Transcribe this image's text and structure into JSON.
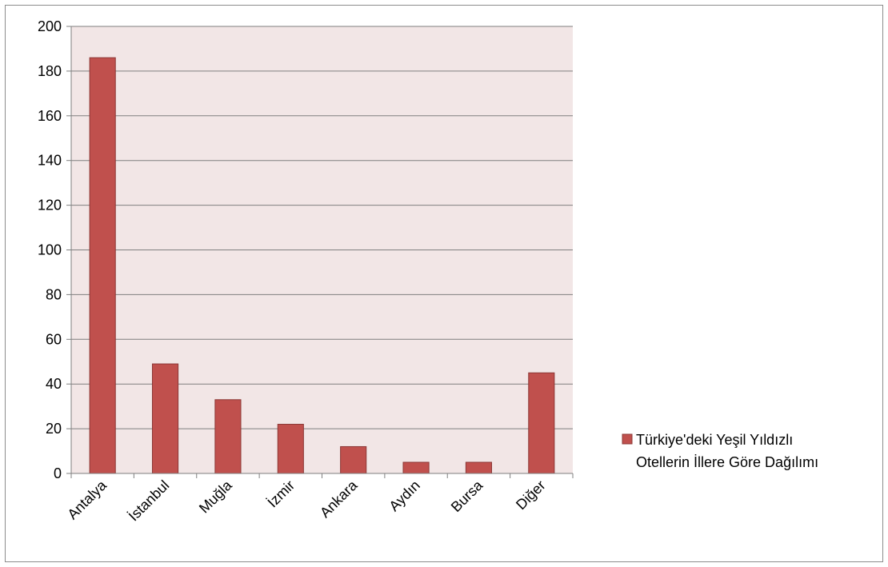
{
  "chart_data": {
    "type": "bar",
    "title": "",
    "xlabel": "",
    "ylabel": "",
    "categories": [
      "Antalya",
      "İstanbul",
      "Muğla",
      "İzmir",
      "Ankara",
      "Aydın",
      "Bursa",
      "Diğer"
    ],
    "series": [
      {
        "name": "Türkiye'deki Yeşil Yıldızlı Otellerin İllere Göre Dağılımı",
        "values": [
          186,
          49,
          33,
          22,
          12,
          5,
          5,
          45
        ]
      }
    ],
    "ylim": [
      0,
      200
    ],
    "yticks": [
      0,
      20,
      40,
      60,
      80,
      100,
      120,
      140,
      160,
      180,
      200
    ],
    "grid": true,
    "legend_position": "right",
    "colors": {
      "bar_fill": "#c0504d",
      "bar_stroke": "#8c3836",
      "plot_background": "#f2e6e6",
      "gridline": "#7f7f7f"
    }
  },
  "legend": {
    "line1": "Türkiye'deki Yeşil Yıldızlı",
    "line2": "Otellerin İllere Göre Dağılımı"
  }
}
